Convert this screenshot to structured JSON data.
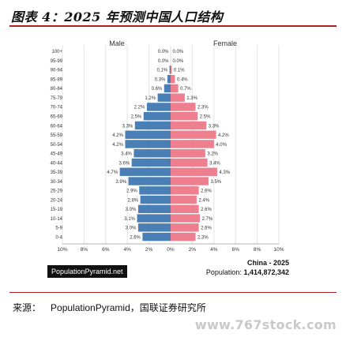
{
  "figure_title": "图表 4：2025 年预测中国人口结构",
  "colors": {
    "male": "#4a7fb5",
    "female": "#ee7f8f",
    "accent": "#b11f24"
  },
  "chart_data": {
    "type": "bar",
    "orientation": "horizontal",
    "subtype": "population-pyramid",
    "categories": [
      "100+",
      "95-99",
      "90-94",
      "85-89",
      "80-84",
      "75-79",
      "70-74",
      "65-69",
      "60-64",
      "55-59",
      "50-54",
      "45-49",
      "40-44",
      "35-39",
      "30-34",
      "25-29",
      "20-24",
      "15-19",
      "10-14",
      "5-9",
      "0-4"
    ],
    "series": [
      {
        "name": "Male",
        "values": [
          0.0,
          0.0,
          0.1,
          0.3,
          0.6,
          1.2,
          2.2,
          2.5,
          3.3,
          4.2,
          4.2,
          3.4,
          3.6,
          4.7,
          3.9,
          2.9,
          2.8,
          3.0,
          3.1,
          3.0,
          2.6
        ]
      },
      {
        "name": "Female",
        "values": [
          0.0,
          0.0,
          0.1,
          0.4,
          0.7,
          1.3,
          2.3,
          2.5,
          3.3,
          4.2,
          4.0,
          3.2,
          3.4,
          4.3,
          3.5,
          2.6,
          2.4,
          2.6,
          2.7,
          2.6,
          2.3
        ]
      }
    ],
    "value_labels_male": [
      "0.0%",
      "0.0%",
      "0.1%",
      "0.3%",
      "0.6%",
      "1.2%",
      "2.2%",
      "2.5%",
      "3.3%",
      "4.2%",
      "4.2%",
      "3.4%",
      "3.6%",
      "4.7%",
      "3.9%",
      "2.9%",
      "2.8%",
      "3.0%",
      "3.1%",
      "3.0%",
      "2.6%"
    ],
    "value_labels_female": [
      "0.0%",
      "0.0%",
      "0.1%",
      "0.4%",
      "0.7%",
      "1.3%",
      "2.3%",
      "2.5%",
      "3.3%",
      "4.2%",
      "4.0%",
      "3.2%",
      "3.4%",
      "4.3%",
      "3.5%",
      "2.6%",
      "2.4%",
      "2.6%",
      "2.7%",
      "2.6%",
      "2.3%"
    ],
    "x_ticks": [
      "10%",
      "8%",
      "6%",
      "4%",
      "2%",
      "0%",
      "2%",
      "4%",
      "6%",
      "8%",
      "10%"
    ],
    "xlim": [
      -10,
      10
    ],
    "grid": "vertical"
  },
  "chart_info": {
    "title": "China - 2025",
    "population_label": "Population:",
    "population_value": "1,414,872,342",
    "badge": "PopulationPyramid.net"
  },
  "source": {
    "label": "来源：",
    "text": "PopulationPyramid，国联证券研究所"
  },
  "watermark": "www.767stock.com"
}
